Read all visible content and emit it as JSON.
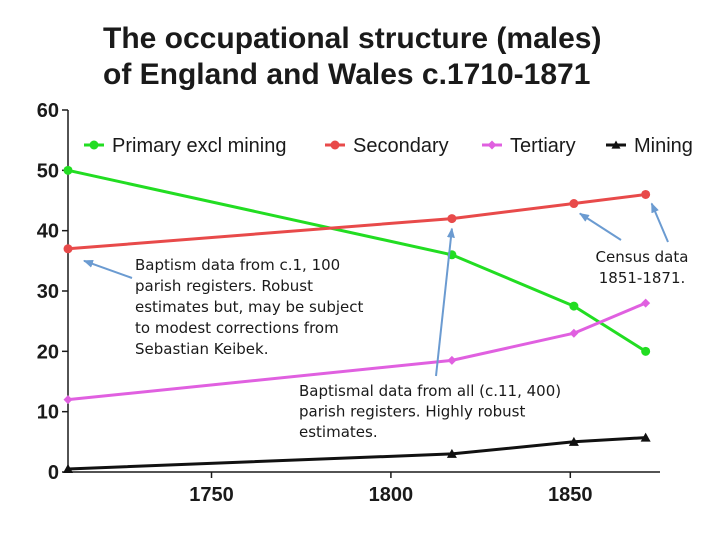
{
  "chart_data": {
    "type": "line",
    "title_lines": [
      "The occupational structure (males)",
      "of England and Wales c.1710-1871"
    ],
    "xlabel": "",
    "ylabel": "",
    "xlim": [
      1710,
      1875
    ],
    "ylim": [
      0,
      60
    ],
    "x_ticks": [
      1750,
      1800,
      1850
    ],
    "y_ticks": [
      0,
      10,
      20,
      30,
      40,
      50,
      60
    ],
    "grid": false,
    "legend_position": "top",
    "series": [
      {
        "name": "Primary excl mining",
        "color": "#22dd22",
        "marker": "circle",
        "points": [
          [
            1710,
            50
          ],
          [
            1817,
            36
          ],
          [
            1851,
            27.5
          ],
          [
            1871,
            20
          ]
        ]
      },
      {
        "name": "Secondary",
        "color": "#e84a4a",
        "marker": "circle",
        "points": [
          [
            1710,
            37
          ],
          [
            1817,
            42
          ],
          [
            1851,
            44.5
          ],
          [
            1871,
            46
          ]
        ]
      },
      {
        "name": "Tertiary",
        "color": "#e060e0",
        "marker": "diamond",
        "points": [
          [
            1710,
            12
          ],
          [
            1817,
            18.5
          ],
          [
            1851,
            23
          ],
          [
            1871,
            28
          ]
        ]
      },
      {
        "name": "Mining",
        "color": "#111111",
        "marker": "triangle",
        "points": [
          [
            1710,
            0.5
          ],
          [
            1817,
            3
          ],
          [
            1851,
            5
          ],
          [
            1871,
            5.7
          ]
        ]
      }
    ],
    "annotations": [
      {
        "id": "baptism-c100",
        "lines": [
          "Baptism data from c.1, 100",
          "parish registers. Robust",
          "estimates but, may be subject",
          "to modest corrections from",
          "Sebastian Keibek."
        ]
      },
      {
        "id": "baptismal-all",
        "lines": [
          "Baptismal data from all (c.11, 400)",
          "parish registers.   Highly robust",
          "estimates."
        ]
      },
      {
        "id": "census",
        "lines": [
          "Census data",
          "1851-1871."
        ]
      }
    ],
    "arrow_color": "#6b9bd1"
  }
}
